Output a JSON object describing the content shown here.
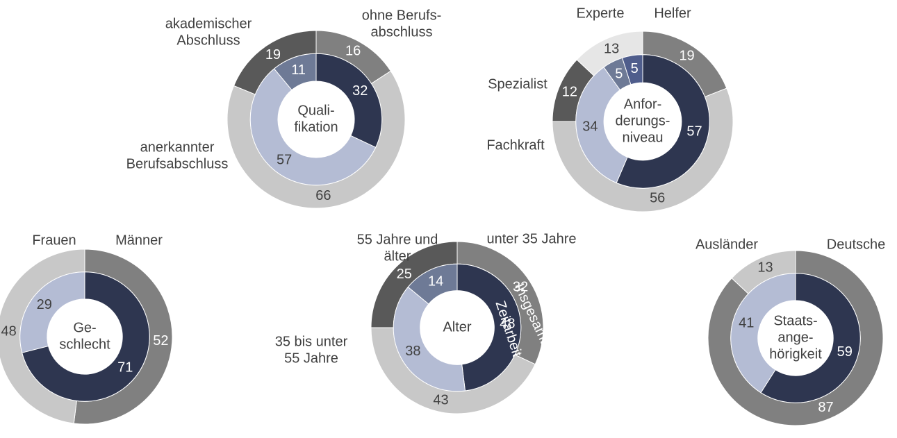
{
  "chart_data": [
    {
      "type": "donut",
      "title": [
        "Quali-",
        "fikation"
      ],
      "categories": [
        [
          "ohne Berufs-",
          "abschluss"
        ],
        [
          "anerkannter",
          "Berufsabschluss"
        ],
        [
          "akademischer",
          "Abschluss"
        ]
      ],
      "series": [
        {
          "values": [
            16,
            66,
            19
          ],
          "colors": [
            "#808080",
            "#c8c8c8",
            "#595959"
          ]
        },
        {
          "values": [
            32,
            57,
            11
          ],
          "colors": [
            "#2e3650",
            "#b4bcd4",
            "#6e7a96"
          ]
        }
      ]
    },
    {
      "type": "donut",
      "title": [
        "Anfor-",
        "derungs-",
        "niveau"
      ],
      "categories": [
        [
          "Helfer"
        ],
        [
          "Fachkraft"
        ],
        [
          "Spezialist"
        ],
        [
          "Experte"
        ]
      ],
      "series": [
        {
          "values": [
            19,
            56,
            12,
            13
          ],
          "colors": [
            "#808080",
            "#c8c8c8",
            "#595959",
            "#e6e6e6"
          ]
        },
        {
          "values": [
            57,
            34,
            5,
            5
          ],
          "colors": [
            "#2e3650",
            "#b4bcd4",
            "#6e7a96",
            "#4f5d8c"
          ]
        }
      ]
    },
    {
      "type": "donut",
      "title": [
        "Ge-",
        "schlecht"
      ],
      "categories": [
        [
          "Männer"
        ],
        [
          "Frauen"
        ]
      ],
      "series": [
        {
          "values": [
            52,
            48
          ],
          "colors": [
            "#808080",
            "#c8c8c8"
          ]
        },
        {
          "values": [
            71,
            29
          ],
          "colors": [
            "#2e3650",
            "#b4bcd4"
          ]
        }
      ]
    },
    {
      "type": "donut",
      "title": [
        "Alter"
      ],
      "categories": [
        [
          "unter 35 Jahre"
        ],
        [
          "35 bis unter",
          "55 Jahre"
        ],
        [
          "55 Jahre und",
          "älter"
        ]
      ],
      "series": [
        {
          "name": "Insgesamt",
          "values": [
            32,
            43,
            25
          ],
          "colors": [
            "#808080",
            "#c8c8c8",
            "#595959"
          ]
        },
        {
          "name": "Zeitarbeit",
          "values": [
            48,
            38,
            14
          ],
          "colors": [
            "#2e3650",
            "#b4bcd4",
            "#6e7a96"
          ]
        }
      ]
    },
    {
      "type": "donut",
      "title": [
        "Staats-",
        "ange-",
        "hörigkeit"
      ],
      "categories": [
        [
          "Deutsche"
        ],
        [
          "Ausländer"
        ]
      ],
      "series": [
        {
          "values": [
            87,
            13
          ],
          "colors": [
            "#808080",
            "#c8c8c8"
          ]
        },
        {
          "values": [
            59,
            41
          ],
          "colors": [
            "#2e3650",
            "#b4bcd4"
          ]
        }
      ]
    }
  ]
}
